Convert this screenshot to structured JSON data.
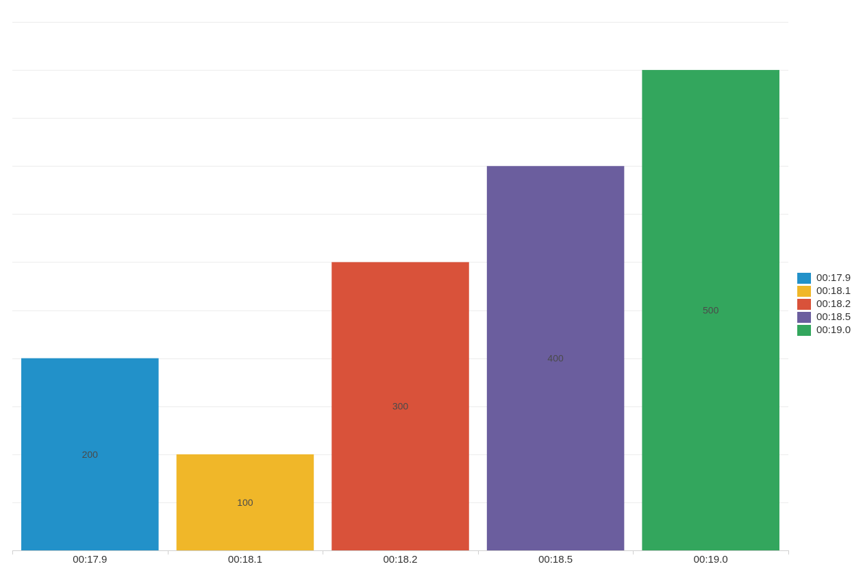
{
  "chart_data": {
    "type": "bar",
    "categories": [
      "00:17.9",
      "00:18.1",
      "00:18.2",
      "00:18.5",
      "00:19.0"
    ],
    "values": [
      200,
      100,
      300,
      400,
      500
    ],
    "colors": [
      "#2291c9",
      "#f0b729",
      "#d9523a",
      "#6b5e9e",
      "#33a65d"
    ],
    "ylim": [
      0,
      550
    ],
    "grid": true,
    "legend": {
      "position": "right",
      "entries": [
        "00:17.9",
        "00:18.1",
        "00:18.2",
        "00:18.5",
        "00:19.0"
      ]
    }
  }
}
